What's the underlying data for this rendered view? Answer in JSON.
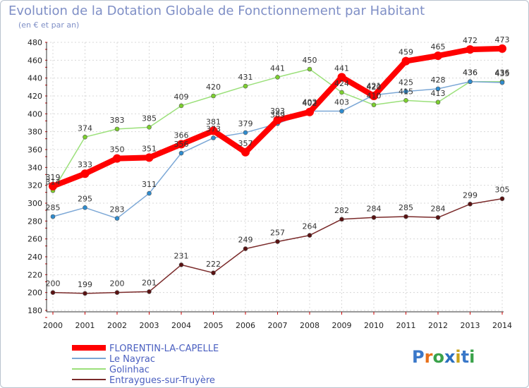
{
  "chart_data": {
    "type": "line",
    "title": "Evolution de la Dotation Globale de Fonctionnement par Habitant",
    "subtitle": "(en € et par an)",
    "x": [
      "2000",
      "2001",
      "2002",
      "2003",
      "2004",
      "2005",
      "2006",
      "2007",
      "2008",
      "2009",
      "2010",
      "2011",
      "2012",
      "2013",
      "2014"
    ],
    "ylim": [
      180,
      480
    ],
    "yticks": [
      180,
      200,
      220,
      240,
      260,
      280,
      300,
      320,
      340,
      360,
      380,
      400,
      420,
      440,
      460,
      480
    ],
    "grid": true,
    "legend_position": "bottom-left",
    "series": [
      {
        "name": "FLORENTIN-LA-CAPELLE",
        "color": "#ff0000",
        "marker": "#ff0000",
        "values": [
          319,
          333,
          350,
          351,
          366,
          381,
          357,
          393,
          402,
          441,
          420,
          459,
          465,
          472,
          473
        ]
      },
      {
        "name": "Le Nayrac",
        "color": "#7ba7d6",
        "marker": "#2e8ccf",
        "values": [
          285,
          295,
          283,
          311,
          356,
          373,
          379,
          389,
          403,
          403,
          421,
          425,
          428,
          436,
          435
        ]
      },
      {
        "name": "Golinhac",
        "color": "#9be07a",
        "marker": "#7ccf2e",
        "values": [
          314,
          374,
          383,
          385,
          409,
          420,
          431,
          441,
          450,
          424,
          410,
          415,
          413,
          436,
          436
        ]
      },
      {
        "name": "Entraygues-sur-Truyère",
        "color": "#7a2a2a",
        "marker": "#5a1212",
        "values": [
          200,
          199,
          200,
          201,
          231,
          222,
          249,
          257,
          264,
          282,
          284,
          285,
          284,
          299,
          305
        ]
      }
    ]
  },
  "branding": {
    "logo_text": "Proxiti"
  }
}
